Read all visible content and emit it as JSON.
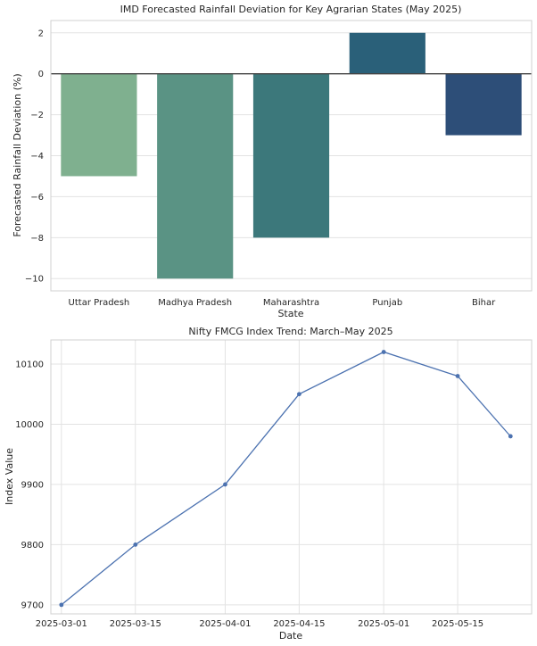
{
  "chart_data": [
    {
      "type": "bar",
      "title": "IMD Forecasted Rainfall Deviation for Key Agrarian States (May 2025)",
      "xlabel": "State",
      "ylabel": "Forecasted Rainfall Deviation (%)",
      "categories": [
        "Uttar Pradesh",
        "Madhya Pradesh",
        "Maharashtra",
        "Punjab",
        "Bihar"
      ],
      "values": [
        -5,
        -10,
        -8,
        2,
        -3
      ],
      "colors": [
        "#7fb08f",
        "#5a9384",
        "#3c787b",
        "#2a6079",
        "#2d4e78"
      ],
      "ylim": [
        -10.6,
        2.6
      ],
      "yticks": [
        2,
        0,
        -2,
        -4,
        -6,
        -8,
        -10
      ],
      "ytick_labels": [
        "2",
        "0",
        "−2",
        "−4",
        "−6",
        "−8",
        "−10"
      ],
      "grid": true
    },
    {
      "type": "line",
      "title": "Nifty FMCG Index Trend: March–May 2025",
      "xlabel": "Date",
      "ylabel": "Index Value",
      "x": [
        "2025-03-01",
        "2025-03-15",
        "2025-04-01",
        "2025-04-15",
        "2025-05-01",
        "2025-05-15",
        "2025-05-25"
      ],
      "values": [
        9700,
        9800,
        9900,
        10050,
        10120,
        10080,
        9980
      ],
      "color": "#4c72b0",
      "xticks": [
        "2025-03-01",
        "2025-03-15",
        "2025-04-01",
        "2025-04-15",
        "2025-05-01",
        "2025-05-15"
      ],
      "yticks": [
        9700,
        9800,
        9900,
        10000,
        10100
      ],
      "ylim": [
        9685,
        10140
      ],
      "xlim": [
        "2025-02-27",
        "2025-05-29"
      ],
      "grid": true
    }
  ]
}
